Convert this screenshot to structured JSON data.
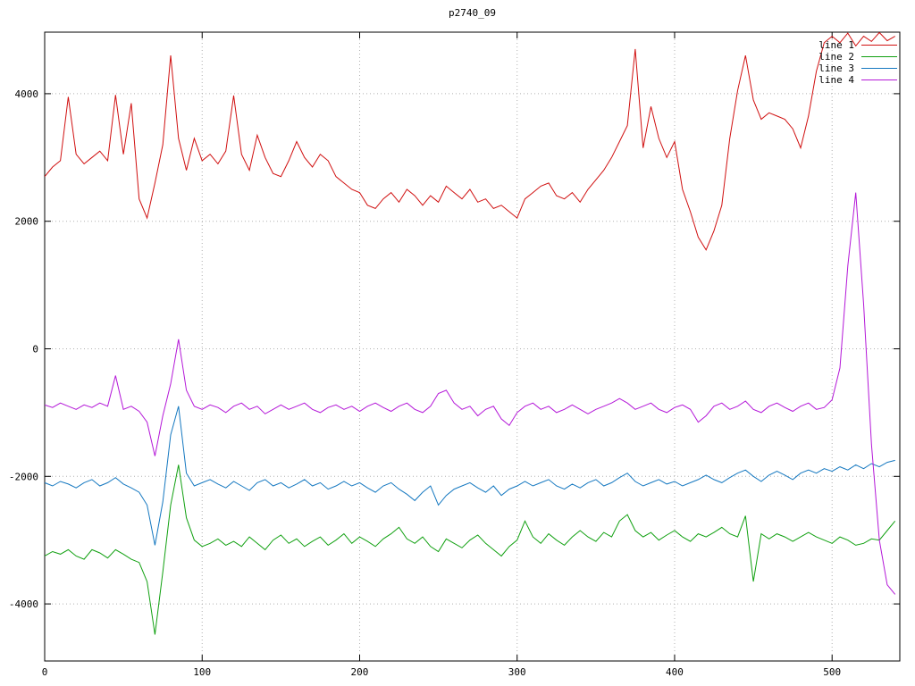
{
  "title": "p2740_09",
  "chart_data": {
    "type": "line",
    "title": "p2740_09",
    "xlabel": "",
    "ylabel": "",
    "xlim": [
      0,
      543
    ],
    "ylim": [
      -4895,
      4965
    ],
    "xticks": [
      0,
      100,
      200,
      300,
      400,
      500
    ],
    "yticks": [
      -4000,
      -2000,
      0,
      2000,
      4000
    ],
    "grid": "dotted",
    "grid_color": "#b0b0b0",
    "axis_color": "#000000",
    "legend_position": "top-right",
    "x": [
      0,
      5,
      10,
      15,
      20,
      25,
      30,
      35,
      40,
      45,
      50,
      55,
      60,
      65,
      70,
      75,
      80,
      85,
      90,
      95,
      100,
      105,
      110,
      115,
      120,
      125,
      130,
      135,
      140,
      145,
      150,
      155,
      160,
      165,
      170,
      175,
      180,
      185,
      190,
      195,
      200,
      205,
      210,
      215,
      220,
      225,
      230,
      235,
      240,
      245,
      250,
      255,
      260,
      265,
      270,
      275,
      280,
      285,
      290,
      295,
      300,
      305,
      310,
      315,
      320,
      325,
      330,
      335,
      340,
      345,
      350,
      355,
      360,
      365,
      370,
      375,
      380,
      385,
      390,
      395,
      400,
      405,
      410,
      415,
      420,
      425,
      430,
      435,
      440,
      445,
      450,
      455,
      460,
      465,
      470,
      475,
      480,
      485,
      490,
      495,
      500,
      505,
      510,
      515,
      520,
      525,
      530,
      535,
      540
    ],
    "series": [
      {
        "name": "line 1",
        "color": "#d01010",
        "values": [
          2700,
          2850,
          2950,
          3950,
          3050,
          2900,
          3000,
          3100,
          2950,
          3980,
          3050,
          3850,
          2350,
          2050,
          2600,
          3200,
          4600,
          3300,
          2800,
          3300,
          2950,
          3050,
          2900,
          3100,
          3970,
          3050,
          2800,
          3350,
          3000,
          2750,
          2700,
          2950,
          3250,
          3000,
          2850,
          3050,
          2950,
          2700,
          2600,
          2500,
          2450,
          2250,
          2200,
          2350,
          2450,
          2300,
          2500,
          2400,
          2250,
          2400,
          2300,
          2550,
          2450,
          2350,
          2500,
          2300,
          2350,
          2200,
          2250,
          2150,
          2050,
          2350,
          2450,
          2550,
          2600,
          2400,
          2350,
          2450,
          2300,
          2500,
          2650,
          2800,
          3000,
          3250,
          3500,
          4700,
          3150,
          3800,
          3300,
          3000,
          3250,
          2500,
          2150,
          1750,
          1550,
          1850,
          2250,
          3300,
          4050,
          4600,
          3900,
          3600,
          3700,
          3650,
          3600,
          3450,
          3150,
          3650,
          4350,
          4800,
          4900,
          4800,
          4950,
          4750,
          4900,
          4820,
          4960,
          4830,
          4900
        ]
      },
      {
        "name": "line 2",
        "color": "#10a010",
        "values": [
          -3250,
          -3180,
          -3220,
          -3150,
          -3250,
          -3300,
          -3150,
          -3200,
          -3280,
          -3150,
          -3220,
          -3300,
          -3350,
          -3650,
          -4480,
          -3500,
          -2450,
          -1820,
          -2650,
          -3000,
          -3100,
          -3050,
          -2980,
          -3080,
          -3020,
          -3100,
          -2950,
          -3050,
          -3150,
          -3000,
          -2920,
          -3050,
          -2980,
          -3100,
          -3020,
          -2950,
          -3080,
          -3000,
          -2900,
          -3050,
          -2950,
          -3020,
          -3100,
          -2980,
          -2900,
          -2800,
          -2980,
          -3050,
          -2950,
          -3100,
          -3180,
          -2980,
          -3050,
          -3120,
          -3000,
          -2920,
          -3050,
          -3150,
          -3250,
          -3100,
          -3000,
          -2700,
          -2950,
          -3050,
          -2900,
          -3000,
          -3080,
          -2950,
          -2850,
          -2950,
          -3020,
          -2880,
          -2950,
          -2700,
          -2600,
          -2850,
          -2950,
          -2880,
          -3000,
          -2920,
          -2850,
          -2950,
          -3020,
          -2900,
          -2950,
          -2880,
          -2800,
          -2900,
          -2950,
          -2620,
          -3650,
          -2900,
          -2980,
          -2900,
          -2950,
          -3020,
          -2950,
          -2880,
          -2950,
          -3000,
          -3050,
          -2950,
          -3000,
          -3080,
          -3050,
          -2980,
          -3000,
          -2850,
          -2700
        ]
      },
      {
        "name": "line 3",
        "color": "#1578c0",
        "values": [
          -2100,
          -2150,
          -2080,
          -2120,
          -2180,
          -2100,
          -2050,
          -2150,
          -2100,
          -2020,
          -2120,
          -2180,
          -2250,
          -2450,
          -3080,
          -2400,
          -1350,
          -900,
          -1950,
          -2150,
          -2100,
          -2050,
          -2120,
          -2180,
          -2080,
          -2150,
          -2220,
          -2100,
          -2050,
          -2150,
          -2100,
          -2180,
          -2120,
          -2050,
          -2150,
          -2100,
          -2200,
          -2150,
          -2080,
          -2150,
          -2100,
          -2180,
          -2250,
          -2150,
          -2100,
          -2200,
          -2280,
          -2380,
          -2250,
          -2150,
          -2450,
          -2300,
          -2200,
          -2150,
          -2100,
          -2180,
          -2250,
          -2150,
          -2300,
          -2200,
          -2150,
          -2080,
          -2150,
          -2100,
          -2050,
          -2150,
          -2200,
          -2120,
          -2180,
          -2100,
          -2050,
          -2150,
          -2100,
          -2020,
          -1950,
          -2080,
          -2150,
          -2100,
          -2050,
          -2120,
          -2080,
          -2150,
          -2100,
          -2050,
          -1980,
          -2050,
          -2100,
          -2020,
          -1950,
          -1900,
          -2000,
          -2080,
          -1980,
          -1920,
          -1980,
          -2050,
          -1950,
          -1900,
          -1950,
          -1880,
          -1920,
          -1850,
          -1900,
          -1820,
          -1880,
          -1800,
          -1850,
          -1780,
          -1750
        ]
      },
      {
        "name": "line 4",
        "color": "#b418d8",
        "values": [
          -880,
          -920,
          -850,
          -900,
          -950,
          -880,
          -920,
          -850,
          -900,
          -420,
          -950,
          -900,
          -980,
          -1150,
          -1680,
          -1050,
          -550,
          150,
          -650,
          -900,
          -950,
          -880,
          -920,
          -1000,
          -900,
          -850,
          -950,
          -900,
          -1020,
          -950,
          -880,
          -950,
          -900,
          -850,
          -950,
          -1000,
          -920,
          -880,
          -950,
          -900,
          -980,
          -900,
          -850,
          -920,
          -980,
          -900,
          -850,
          -950,
          -1000,
          -900,
          -700,
          -650,
          -850,
          -950,
          -900,
          -1050,
          -950,
          -900,
          -1100,
          -1200,
          -1000,
          -900,
          -850,
          -950,
          -900,
          -1000,
          -950,
          -880,
          -950,
          -1020,
          -950,
          -900,
          -850,
          -780,
          -850,
          -950,
          -900,
          -850,
          -950,
          -1000,
          -920,
          -880,
          -950,
          -1150,
          -1050,
          -900,
          -850,
          -950,
          -900,
          -820,
          -950,
          -1000,
          -900,
          -850,
          -920,
          -980,
          -900,
          -850,
          -950,
          -920,
          -800,
          -300,
          1300,
          2450,
          700,
          -1500,
          -3000,
          -3700,
          -3850
        ]
      }
    ]
  }
}
